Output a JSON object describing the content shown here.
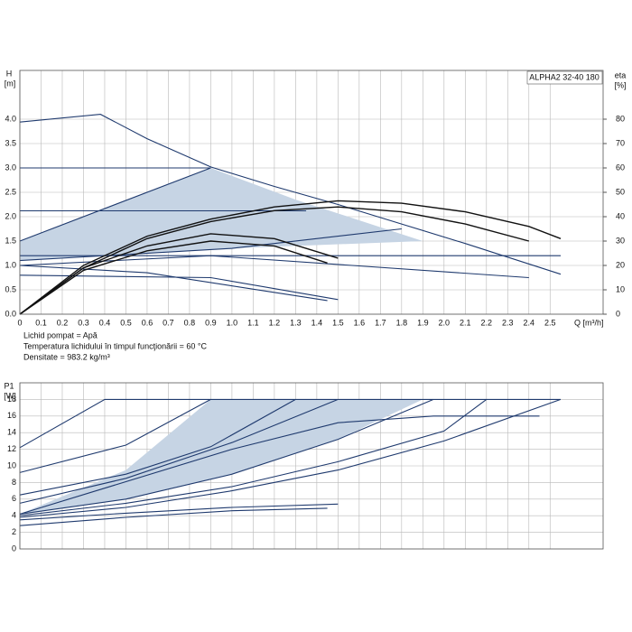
{
  "chart_data": [
    {
      "type": "line",
      "model": "ALPHA2 32-40 180",
      "ylabel": "H",
      "yunit": "[m]",
      "y2label": "eta",
      "y2unit": "[%]",
      "xlabel": "Q [m³/h]",
      "notes": [
        "Lichid pompat = Apă",
        "Temperatura lichidului în timpul funcţionării = 60 °C",
        "Densitate = 983.2 kg/m³"
      ],
      "xlim": [
        0,
        2.75
      ],
      "ylim": [
        0,
        5
      ],
      "y2lim": [
        0,
        100
      ],
      "grid": true,
      "xticks": [
        0,
        0.1,
        0.2,
        0.3,
        0.4,
        0.5,
        0.6,
        0.7,
        0.8,
        0.9,
        {
          "value": 1,
          "label": "1.0"
        },
        1.1,
        1.2,
        1.3,
        1.4,
        1.5,
        1.6,
        1.7,
        1.8,
        1.9,
        {
          "value": 2,
          "label": "2.0"
        },
        2.1,
        2.2,
        2.3,
        2.4,
        2.5
      ],
      "yticks": [
        {
          "value": 0,
          "label": "0.0"
        },
        0.5,
        {
          "value": 1,
          "label": "1.0"
        },
        1.5,
        {
          "value": 2,
          "label": "2.0"
        },
        2.5,
        {
          "value": 3,
          "label": "3.0"
        },
        3.5,
        {
          "value": 4,
          "label": "4.0"
        }
      ],
      "y2ticks": [
        0,
        10,
        20,
        30,
        40,
        50,
        60,
        70,
        80
      ],
      "shaded": [
        {
          "color": "#c6d4e4",
          "x": [
            0,
            0.9,
            1.3,
            1.9,
            1.0,
            0
          ],
          "values": [
            1.5,
            3.0,
            2.35,
            1.5,
            1.35,
            1.1
          ]
        }
      ],
      "series": [
        {
          "color": "#1f3a6e",
          "x": [
            0,
            0.38,
            0.6,
            0.9,
            1.2,
            1.5,
            1.8,
            2.1,
            2.55
          ],
          "values": [
            3.94,
            4.1,
            3.6,
            3.02,
            2.62,
            2.25,
            1.85,
            1.45,
            0.82
          ]
        },
        {
          "color": "#1f3a6e",
          "x": [
            0,
            0.9
          ],
          "values": [
            3.0,
            3.0
          ]
        },
        {
          "color": "#1f3a6e",
          "x": [
            0,
            1.35
          ],
          "values": [
            2.12,
            2.12
          ]
        },
        {
          "color": "#1f3a6e",
          "x": [
            0,
            0.9
          ],
          "values": [
            1.5,
            3.0
          ]
        },
        {
          "color": "#1f3a6e",
          "x": [
            0,
            2.55
          ],
          "values": [
            1.2,
            1.2
          ]
        },
        {
          "color": "#1f3a6e",
          "x": [
            0,
            1.0,
            1.8
          ],
          "values": [
            1.1,
            1.35,
            1.75
          ]
        },
        {
          "color": "#1f3a6e",
          "x": [
            0,
            0.9,
            2.4
          ],
          "values": [
            1.0,
            1.2,
            0.75
          ]
        },
        {
          "color": "#1f3a6e",
          "x": [
            0,
            0.9,
            1.5
          ],
          "values": [
            0.8,
            0.75,
            0.3
          ]
        },
        {
          "color": "#1f3a6e",
          "x": [
            0,
            0.6,
            1.45
          ],
          "values": [
            1.0,
            0.85,
            0.28
          ]
        },
        {
          "color": "#111111",
          "axis": "y2",
          "x": [
            0,
            0.3,
            0.6,
            0.9,
            1.2,
            1.5,
            1.8,
            2.1,
            2.4,
            2.55
          ],
          "values": [
            0,
            20,
            32,
            39,
            44,
            46.5,
            45.5,
            42,
            36,
            31
          ]
        },
        {
          "color": "#111111",
          "axis": "y2",
          "x": [
            0,
            0.3,
            0.6,
            0.9,
            1.2,
            1.5,
            1.8,
            2.1,
            2.4
          ],
          "values": [
            0,
            19,
            31,
            38,
            42.5,
            44,
            42,
            37,
            30
          ]
        },
        {
          "color": "#111111",
          "axis": "y2",
          "x": [
            0,
            0.3,
            0.6,
            0.9,
            1.2,
            1.5
          ],
          "values": [
            0,
            19,
            28,
            33,
            31,
            23
          ]
        },
        {
          "color": "#111111",
          "axis": "y2",
          "x": [
            0,
            0.3,
            0.6,
            0.9,
            1.2,
            1.45
          ],
          "values": [
            0,
            18,
            26,
            30,
            28,
            21
          ]
        }
      ]
    },
    {
      "type": "line",
      "ylabel": "P1",
      "yunit": "[W]",
      "xlim": [
        0,
        2.75
      ],
      "ylim": [
        0,
        20
      ],
      "grid": true,
      "yticks": [
        0,
        2,
        4,
        6,
        8,
        10,
        12,
        14,
        16,
        18
      ],
      "shaded": [
        {
          "color": "#c6d4e4",
          "x": [
            0,
            0.5,
            0.9,
            1.9,
            1.5,
            1.0,
            0.5
          ],
          "values": [
            4.2,
            9.5,
            18,
            18,
            13.2,
            9,
            6
          ]
        }
      ],
      "series": [
        {
          "color": "#1f3a6e",
          "x": [
            0,
            0.4,
            2.55
          ],
          "values": [
            12.2,
            18,
            18
          ]
        },
        {
          "color": "#1f3a6e",
          "x": [
            0,
            0.5,
            0.9
          ],
          "values": [
            9.2,
            12.5,
            18
          ]
        },
        {
          "color": "#1f3a6e",
          "x": [
            0,
            0.5,
            0.9,
            1.3
          ],
          "values": [
            6.5,
            9,
            12.3,
            18
          ]
        },
        {
          "color": "#1f3a6e",
          "x": [
            0,
            0.5,
            1,
            1.5
          ],
          "values": [
            5.5,
            8.5,
            12.8,
            18
          ]
        },
        {
          "color": "#1f3a6e",
          "x": [
            0,
            0.5,
            1,
            1.5,
            1.95
          ],
          "values": [
            4.2,
            6,
            9,
            13.2,
            18
          ]
        },
        {
          "color": "#1f3a6e",
          "x": [
            0,
            1,
            1.5,
            1.95,
            2.45
          ],
          "values": [
            4.2,
            12,
            15.2,
            16,
            16
          ]
        },
        {
          "color": "#1f3a6e",
          "x": [
            0,
            0.5,
            1,
            1.5,
            2,
            2.2
          ],
          "values": [
            4,
            5.5,
            7.5,
            10.5,
            14.2,
            18
          ]
        },
        {
          "color": "#1f3a6e",
          "x": [
            0,
            0.5,
            1,
            1.5,
            2,
            2.55
          ],
          "values": [
            3.8,
            5,
            7,
            9.5,
            13,
            18
          ]
        },
        {
          "color": "#1f3a6e",
          "x": [
            0,
            0.5,
            1,
            1.5
          ],
          "values": [
            3.5,
            4.3,
            5,
            5.4
          ]
        },
        {
          "color": "#1f3a6e",
          "x": [
            0,
            0.5,
            1,
            1.45
          ],
          "values": [
            2.8,
            3.8,
            4.6,
            4.9
          ]
        }
      ]
    }
  ]
}
